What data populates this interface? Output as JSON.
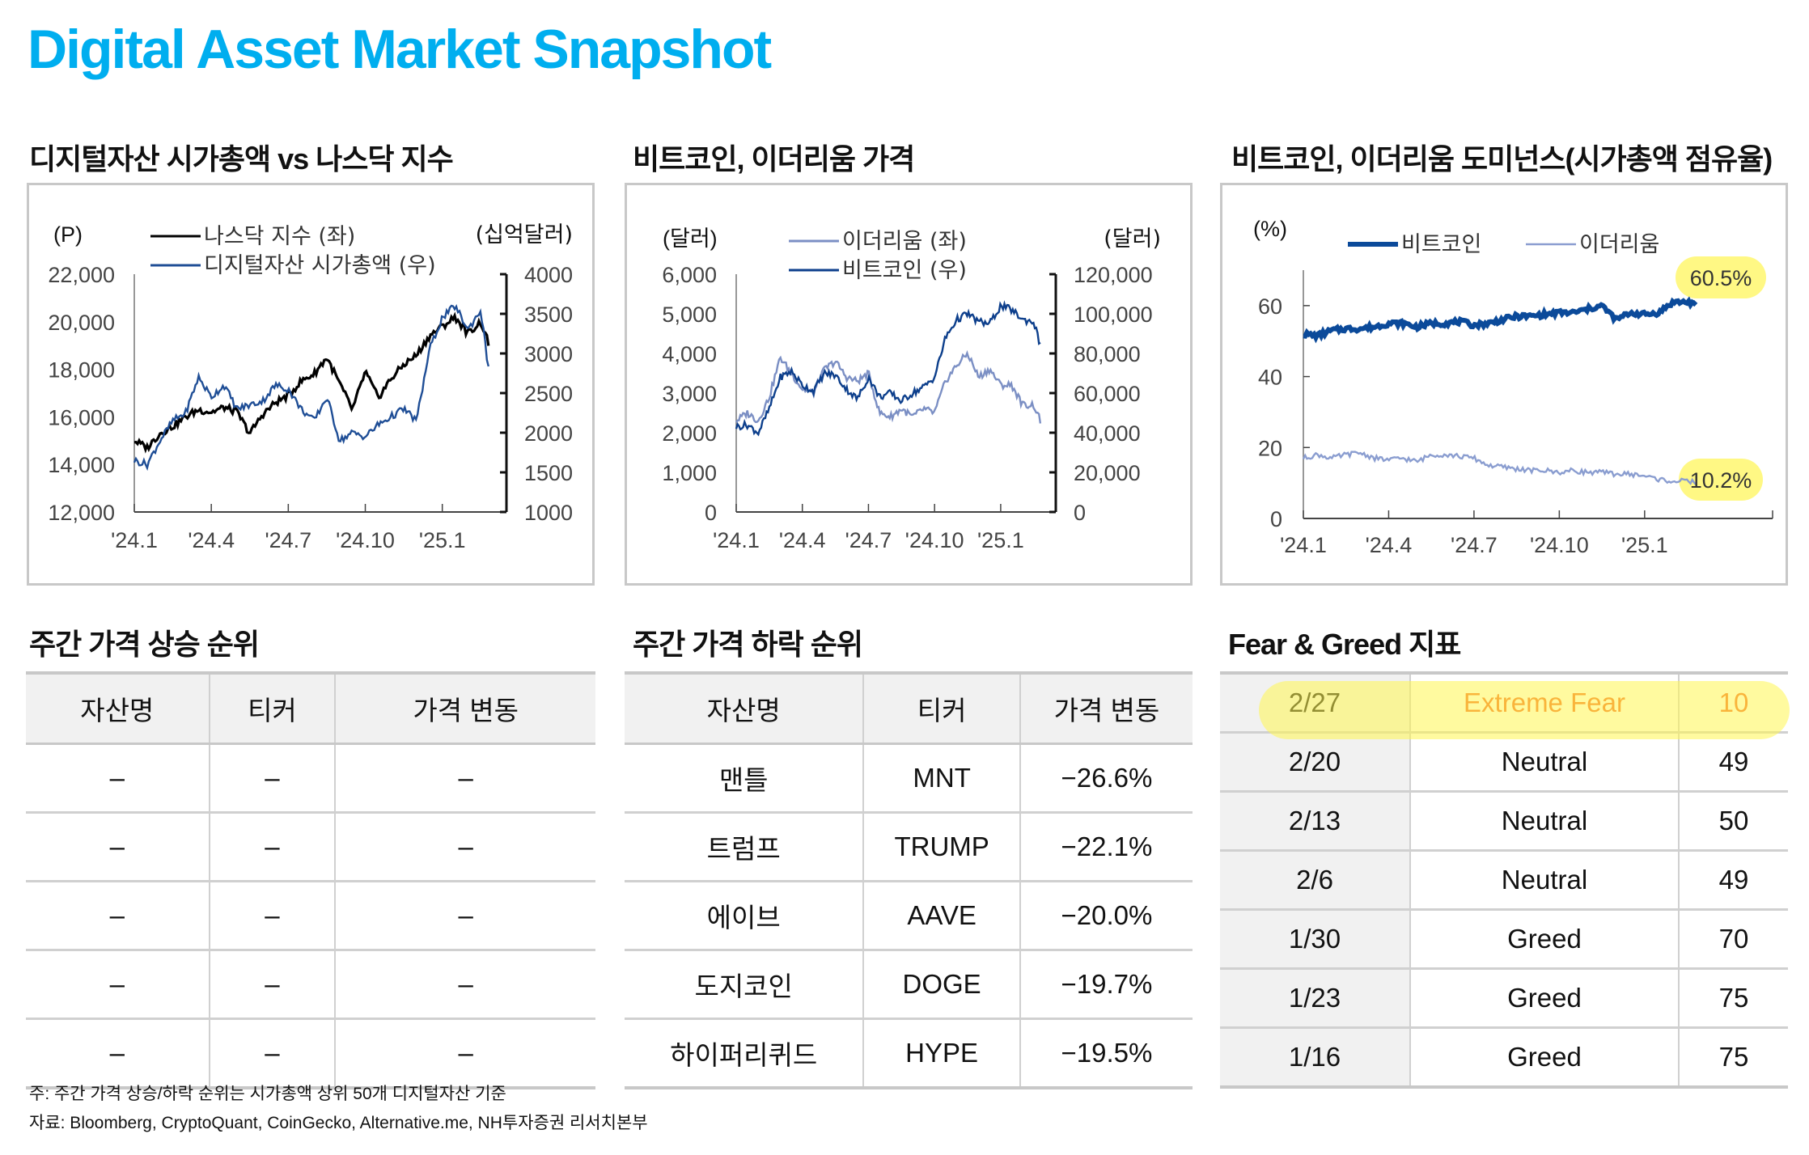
{
  "header": {
    "title": "Digital Asset Market Snapshot"
  },
  "sections": {
    "chart1_title": "디지털자산 시가총액 vs 나스닥 지수",
    "chart2_title": "비트코인, 이더리움 가격",
    "chart3_title": "비트코인, 이더리움 도미넌스(시가총액 점유율)",
    "gainers_title": "주간 가격 상승 순위",
    "losers_title": "주간 가격 하락 순위",
    "fng_title": "Fear & Greed 지표"
  },
  "chart_data": [
    {
      "type": "line",
      "title": "디지털자산 시가총액 vs 나스닥 지수",
      "y_left_label": "(P)",
      "y_right_label": "(십억달러)",
      "y_left_ticks": [
        "22,000",
        "20,000",
        "18,000",
        "16,000",
        "14,000",
        "12,000"
      ],
      "y_right_ticks": [
        "4000",
        "3500",
        "3000",
        "2500",
        "2000",
        "1500",
        "1000"
      ],
      "ylim_left": [
        12000,
        22000
      ],
      "ylim_right": [
        1000,
        4000
      ],
      "x_ticks": [
        "'24.1",
        "'24.4",
        "'24.7",
        "'24.10",
        "'25.1"
      ],
      "x": [
        0,
        0.5,
        1,
        1.5,
        2,
        2.5,
        3,
        3.5,
        4,
        4.5,
        5,
        5.5,
        6,
        6.5,
        7,
        7.5,
        8,
        8.5,
        9,
        9.5,
        10,
        10.5,
        11,
        11.5,
        12,
        12.5,
        13,
        13.5,
        13.8
      ],
      "series": [
        {
          "name": "나스닥 지수 (좌)",
          "axis": "left",
          "color": "#000000",
          "values": [
            15000,
            14700,
            15300,
            15600,
            16000,
            16300,
            16200,
            16400,
            16200,
            15300,
            16100,
            16600,
            16900,
            17500,
            17800,
            18500,
            17400,
            16300,
            17900,
            16800,
            17600,
            18200,
            18600,
            19400,
            19800,
            20200,
            19500,
            20000,
            19100
          ]
        },
        {
          "name": "디지털자산 시가총액 (우)",
          "axis": "right",
          "color": "#1F4E96",
          "values": [
            1650,
            1600,
            1900,
            2150,
            2250,
            2700,
            2450,
            2600,
            2300,
            2350,
            2400,
            2600,
            2550,
            2300,
            2150,
            2450,
            1900,
            2000,
            1950,
            2100,
            2200,
            2300,
            2150,
            3050,
            3450,
            3600,
            3300,
            3550,
            2800
          ]
        }
      ]
    },
    {
      "type": "line",
      "title": "비트코인, 이더리움 가격",
      "y_left_label": "(달러)",
      "y_right_label": "(달러)",
      "y_left_ticks": [
        "6,000",
        "5,000",
        "4,000",
        "3,000",
        "2,000",
        "1,000",
        "0"
      ],
      "y_right_ticks": [
        "120,000",
        "100,000",
        "80,000",
        "60,000",
        "40,000",
        "20,000",
        "0"
      ],
      "ylim_left": [
        0,
        6000
      ],
      "ylim_right": [
        0,
        120000
      ],
      "x_ticks": [
        "'24.1",
        "'24.4",
        "'24.7",
        "'24.10",
        "'25.1"
      ],
      "x": [
        0,
        0.5,
        1,
        1.5,
        2,
        2.5,
        3,
        3.5,
        4,
        4.5,
        5,
        5.5,
        6,
        6.5,
        7,
        7.5,
        8,
        8.5,
        9,
        9.5,
        10,
        10.5,
        11,
        11.5,
        12,
        12.5,
        13,
        13.5,
        13.8
      ],
      "series": [
        {
          "name": "이더리움 (좌)",
          "axis": "left",
          "color": "#7B8FC4",
          "values": [
            2300,
            2500,
            2300,
            2900,
            3900,
            3500,
            3100,
            3000,
            3600,
            3800,
            3400,
            3300,
            3500,
            2500,
            2400,
            2600,
            2400,
            2600,
            2500,
            3300,
            3700,
            4000,
            3400,
            3600,
            3200,
            3200,
            2700,
            2700,
            2300
          ]
        },
        {
          "name": "비트코인 (우)",
          "axis": "right",
          "color": "#0D3F8C",
          "values": [
            43000,
            44000,
            40000,
            52000,
            68000,
            71000,
            64000,
            61000,
            70000,
            69000,
            62000,
            57000,
            68000,
            58000,
            60000,
            56000,
            60000,
            63000,
            68000,
            88000,
            97000,
            100000,
            96000,
            95000,
            104000,
            102000,
            97000,
            96000,
            84000
          ]
        }
      ]
    },
    {
      "type": "line",
      "title": "비트코인, 이더리움 도미넌스(시가총액 점유율)",
      "y_label": "(%)",
      "y_ticks": [
        "60",
        "40",
        "20",
        "0"
      ],
      "ylim": [
        0,
        70
      ],
      "x_ticks": [
        "'24.1",
        "'24.4",
        "'24.7",
        "'24.10",
        "'25.1"
      ],
      "x": [
        0,
        0.5,
        1,
        1.5,
        2,
        2.5,
        3,
        3.5,
        4,
        4.5,
        5,
        5.5,
        6,
        6.5,
        7,
        7.5,
        8,
        8.5,
        9,
        9.5,
        10,
        10.5,
        11,
        11.5,
        12,
        12.5,
        13,
        13.5,
        13.8
      ],
      "series": [
        {
          "name": "비트코인",
          "color": "#0B4A9A",
          "values": [
            52,
            51.5,
            53,
            53.5,
            53.5,
            54,
            55,
            55,
            54,
            55,
            55,
            55.5,
            54.5,
            55,
            56,
            57,
            57,
            57.5,
            58,
            58,
            59,
            60,
            56,
            58,
            57.5,
            58,
            61,
            61,
            60.5
          ]
        },
        {
          "name": "이더리움",
          "color": "#8A9DD0",
          "values": [
            17,
            18,
            17,
            18,
            18.5,
            17,
            16.5,
            17,
            16,
            18,
            18,
            17.5,
            17,
            15,
            14.5,
            14,
            13.5,
            13.5,
            13,
            13.5,
            13,
            13,
            12.5,
            12.5,
            12,
            11,
            10.5,
            10.5,
            10.2
          ]
        }
      ],
      "annotations": [
        "60.5%",
        "10.2%"
      ]
    }
  ],
  "gainers": {
    "columns": [
      "자산명",
      "티커",
      "가격 변동"
    ],
    "rows": [
      [
        "–",
        "–",
        "–"
      ],
      [
        "–",
        "–",
        "–"
      ],
      [
        "–",
        "–",
        "–"
      ],
      [
        "–",
        "–",
        "–"
      ],
      [
        "–",
        "–",
        "–"
      ]
    ]
  },
  "losers": {
    "columns": [
      "자산명",
      "티커",
      "가격 변동"
    ],
    "rows": [
      [
        "맨틀",
        "MNT",
        "−26.6%"
      ],
      [
        "트럼프",
        "TRUMP",
        "−22.1%"
      ],
      [
        "에이브",
        "AAVE",
        "−20.0%"
      ],
      [
        "도지코인",
        "DOGE",
        "−19.7%"
      ],
      [
        "하이퍼리퀴드",
        "HYPE",
        "−19.5%"
      ]
    ]
  },
  "fear_greed": {
    "rows": [
      [
        "2/27",
        "Extreme Fear",
        "10"
      ],
      [
        "2/20",
        "Neutral",
        "49"
      ],
      [
        "2/13",
        "Neutral",
        "50"
      ],
      [
        "2/6",
        "Neutral",
        "49"
      ],
      [
        "1/30",
        "Greed",
        "70"
      ],
      [
        "1/23",
        "Greed",
        "75"
      ],
      [
        "1/16",
        "Greed",
        "75"
      ]
    ],
    "highlight_color": "#F26522"
  },
  "footer": {
    "note": "주: 주간 가격 상승/하락 순위는 시가총액 상위 50개 디지털자산 기준",
    "source": "자료: Bloomberg, CryptoQuant, CoinGecko, Alternative.me, NH투자증권 리서치본부"
  }
}
